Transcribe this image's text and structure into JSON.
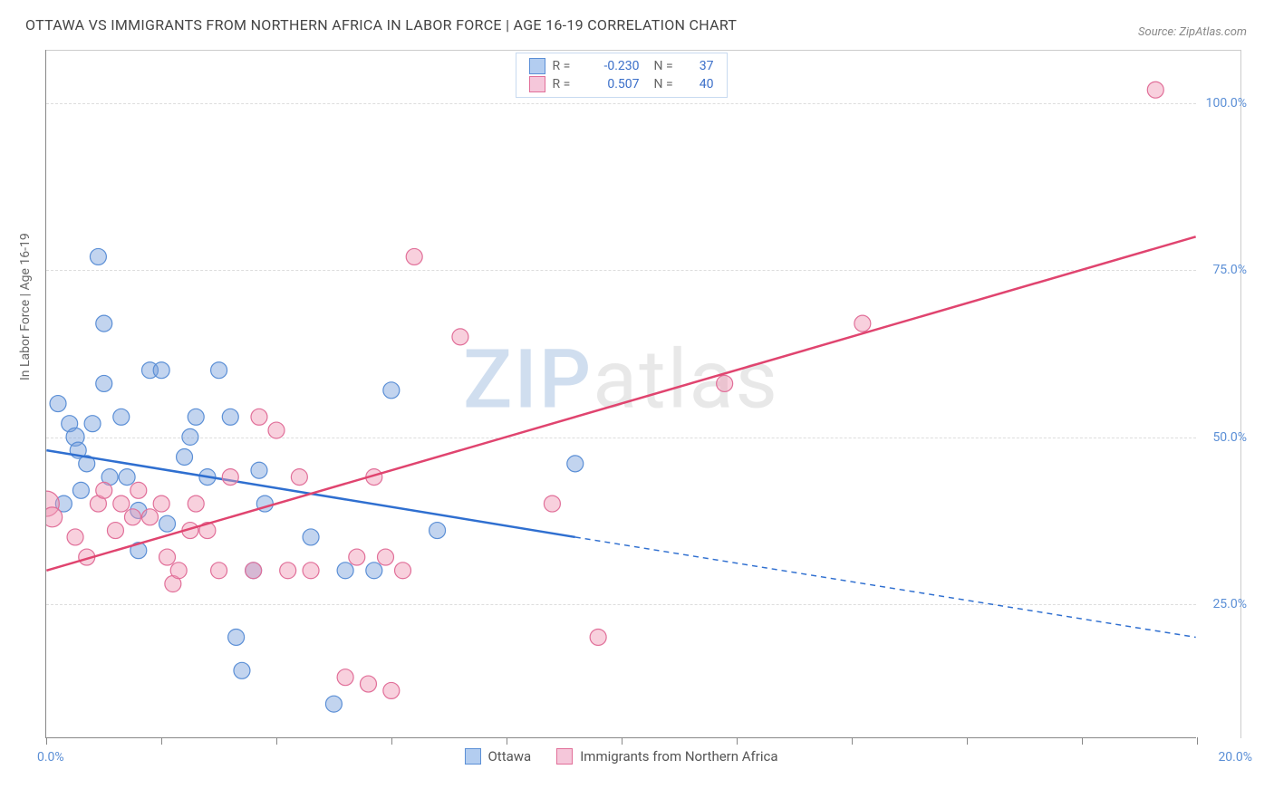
{
  "title": "OTTAWA VS IMMIGRANTS FROM NORTHERN AFRICA IN LABOR FORCE | AGE 16-19 CORRELATION CHART",
  "source": "Source: ZipAtlas.com",
  "ylabel": "In Labor Force | Age 16-19",
  "watermark_bold": "ZIP",
  "watermark_light": "atlas",
  "chart": {
    "type": "scatter-with-regression",
    "xlim": [
      0,
      20
    ],
    "ylim": [
      5,
      108
    ],
    "x_ticks": [
      0,
      2,
      4,
      6,
      8,
      10,
      12,
      14,
      16,
      18,
      20
    ],
    "x_tick_labels": {
      "0": "0.0%",
      "20": "20.0%"
    },
    "y_gridlines": [
      25,
      50,
      75,
      100
    ],
    "y_tick_labels": {
      "25": "25.0%",
      "50": "50.0%",
      "75": "75.0%",
      "100": "100.0%"
    },
    "background_color": "#ffffff",
    "grid_color": "#dddddd",
    "series": [
      {
        "name": "Ottawa",
        "color_fill": "rgba(120, 160, 220, 0.45)",
        "color_stroke": "#5b8fd6",
        "legend_swatch_fill": "#b3cdf0",
        "legend_swatch_border": "#5b8fd6",
        "R": "-0.230",
        "N": "37",
        "regression": {
          "x1": 0,
          "y1": 48,
          "x_solid_end": 9.2,
          "y_solid_end": 35,
          "x2": 20,
          "y2": 20,
          "line_color": "#2f6fd0",
          "line_width": 2.5
        },
        "points": [
          {
            "x": 0.2,
            "y": 55,
            "r": 9
          },
          {
            "x": 0.3,
            "y": 40,
            "r": 9
          },
          {
            "x": 0.4,
            "y": 52,
            "r": 9
          },
          {
            "x": 0.5,
            "y": 50,
            "r": 10
          },
          {
            "x": 0.55,
            "y": 48,
            "r": 9
          },
          {
            "x": 0.6,
            "y": 42,
            "r": 9
          },
          {
            "x": 0.7,
            "y": 46,
            "r": 9
          },
          {
            "x": 0.8,
            "y": 52,
            "r": 9
          },
          {
            "x": 0.9,
            "y": 77,
            "r": 9
          },
          {
            "x": 1.0,
            "y": 67,
            "r": 9
          },
          {
            "x": 1.0,
            "y": 58,
            "r": 9
          },
          {
            "x": 1.1,
            "y": 44,
            "r": 9
          },
          {
            "x": 1.3,
            "y": 53,
            "r": 9
          },
          {
            "x": 1.4,
            "y": 44,
            "r": 9
          },
          {
            "x": 1.6,
            "y": 33,
            "r": 9
          },
          {
            "x": 1.6,
            "y": 39,
            "r": 9
          },
          {
            "x": 1.8,
            "y": 60,
            "r": 9
          },
          {
            "x": 2.0,
            "y": 60,
            "r": 9
          },
          {
            "x": 2.1,
            "y": 37,
            "r": 9
          },
          {
            "x": 2.4,
            "y": 47,
            "r": 9
          },
          {
            "x": 2.5,
            "y": 50,
            "r": 9
          },
          {
            "x": 2.6,
            "y": 53,
            "r": 9
          },
          {
            "x": 2.8,
            "y": 44,
            "r": 9
          },
          {
            "x": 3.0,
            "y": 60,
            "r": 9
          },
          {
            "x": 3.2,
            "y": 53,
            "r": 9
          },
          {
            "x": 3.3,
            "y": 20,
            "r": 9
          },
          {
            "x": 3.4,
            "y": 15,
            "r": 9
          },
          {
            "x": 3.6,
            "y": 30,
            "r": 9
          },
          {
            "x": 3.7,
            "y": 45,
            "r": 9
          },
          {
            "x": 3.8,
            "y": 40,
            "r": 9
          },
          {
            "x": 4.6,
            "y": 35,
            "r": 9
          },
          {
            "x": 5.0,
            "y": 10,
            "r": 9
          },
          {
            "x": 5.2,
            "y": 30,
            "r": 9
          },
          {
            "x": 5.7,
            "y": 30,
            "r": 9
          },
          {
            "x": 6.0,
            "y": 57,
            "r": 9
          },
          {
            "x": 6.8,
            "y": 36,
            "r": 9
          },
          {
            "x": 9.2,
            "y": 46,
            "r": 9
          }
        ]
      },
      {
        "name": "Immigrants from Northern Africa",
        "color_fill": "rgba(240, 150, 180, 0.45)",
        "color_stroke": "#e16f99",
        "legend_swatch_fill": "#f5c7da",
        "legend_swatch_border": "#e16f99",
        "R": "0.507",
        "N": "40",
        "regression": {
          "x1": 0,
          "y1": 30,
          "x_solid_end": 20,
          "y_solid_end": 80,
          "x2": 20,
          "y2": 80,
          "line_color": "#e0446f",
          "line_width": 2.5
        },
        "points": [
          {
            "x": 0.0,
            "y": 40,
            "r": 14
          },
          {
            "x": 0.1,
            "y": 38,
            "r": 11
          },
          {
            "x": 0.5,
            "y": 35,
            "r": 9
          },
          {
            "x": 0.7,
            "y": 32,
            "r": 9
          },
          {
            "x": 0.9,
            "y": 40,
            "r": 9
          },
          {
            "x": 1.0,
            "y": 42,
            "r": 9
          },
          {
            "x": 1.2,
            "y": 36,
            "r": 9
          },
          {
            "x": 1.3,
            "y": 40,
            "r": 9
          },
          {
            "x": 1.5,
            "y": 38,
            "r": 9
          },
          {
            "x": 1.6,
            "y": 42,
            "r": 9
          },
          {
            "x": 1.8,
            "y": 38,
            "r": 9
          },
          {
            "x": 2.0,
            "y": 40,
            "r": 9
          },
          {
            "x": 2.1,
            "y": 32,
            "r": 9
          },
          {
            "x": 2.2,
            "y": 28,
            "r": 9
          },
          {
            "x": 2.3,
            "y": 30,
            "r": 9
          },
          {
            "x": 2.5,
            "y": 36,
            "r": 9
          },
          {
            "x": 2.6,
            "y": 40,
            "r": 9
          },
          {
            "x": 2.8,
            "y": 36,
            "r": 9
          },
          {
            "x": 3.0,
            "y": 30,
            "r": 9
          },
          {
            "x": 3.2,
            "y": 44,
            "r": 9
          },
          {
            "x": 3.6,
            "y": 30,
            "r": 9
          },
          {
            "x": 3.7,
            "y": 53,
            "r": 9
          },
          {
            "x": 4.0,
            "y": 51,
            "r": 9
          },
          {
            "x": 4.2,
            "y": 30,
            "r": 9
          },
          {
            "x": 4.4,
            "y": 44,
            "r": 9
          },
          {
            "x": 4.6,
            "y": 30,
            "r": 9
          },
          {
            "x": 5.2,
            "y": 14,
            "r": 9
          },
          {
            "x": 5.4,
            "y": 32,
            "r": 9
          },
          {
            "x": 5.6,
            "y": 13,
            "r": 9
          },
          {
            "x": 5.7,
            "y": 44,
            "r": 9
          },
          {
            "x": 5.9,
            "y": 32,
            "r": 9
          },
          {
            "x": 6.0,
            "y": 12,
            "r": 9
          },
          {
            "x": 6.2,
            "y": 30,
            "r": 9
          },
          {
            "x": 6.4,
            "y": 77,
            "r": 9
          },
          {
            "x": 7.2,
            "y": 65,
            "r": 9
          },
          {
            "x": 8.8,
            "y": 40,
            "r": 9
          },
          {
            "x": 9.6,
            "y": 20,
            "r": 9
          },
          {
            "x": 11.8,
            "y": 58,
            "r": 9
          },
          {
            "x": 14.2,
            "y": 67,
            "r": 9
          },
          {
            "x": 19.3,
            "y": 102,
            "r": 9
          }
        ]
      }
    ]
  }
}
